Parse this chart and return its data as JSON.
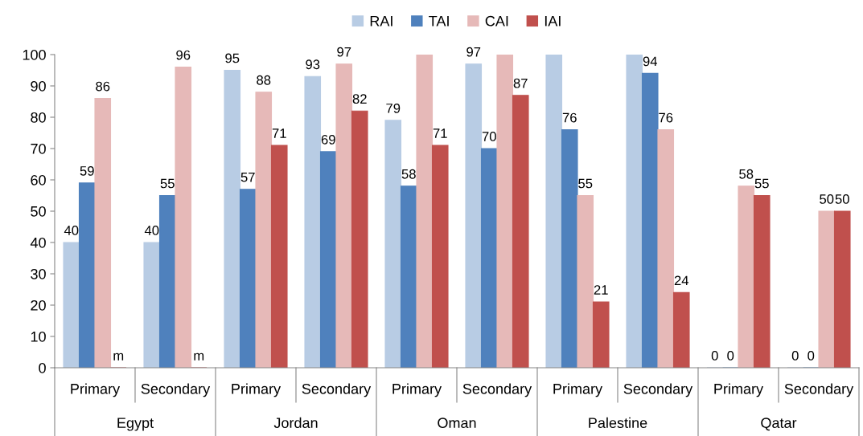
{
  "chart_data": {
    "type": "bar",
    "categories": [
      "Primary",
      "Secondary",
      "Primary",
      "Secondary",
      "Primary",
      "Secondary",
      "Primary",
      "Secondary",
      "Primary",
      "Secondary"
    ],
    "annotations": [
      "Egypt",
      "Jordan",
      "Oman",
      "Palestine",
      "Qatar"
    ],
    "series": [
      {
        "name": "RAI",
        "color": "#b8cce4",
        "values": [
          40,
          40,
          95,
          93,
          79,
          97,
          100,
          100,
          0,
          0
        ],
        "value_labels": [
          "40",
          "40",
          "95",
          "93",
          "79",
          "97",
          null,
          null,
          "0",
          "0"
        ]
      },
      {
        "name": "TAI",
        "color": "#4f81bd",
        "values": [
          59,
          55,
          57,
          69,
          58,
          70,
          76,
          94,
          0,
          0
        ],
        "value_labels": [
          "59",
          "55",
          "57",
          "69",
          "58",
          "70",
          "76",
          "94",
          "0",
          "0"
        ]
      },
      {
        "name": "CAI",
        "color": "#e6b9b8",
        "values": [
          86,
          96,
          88,
          97,
          100,
          100,
          55,
          76,
          58,
          50
        ],
        "value_labels": [
          "86",
          "96",
          "88",
          "97",
          null,
          null,
          "55",
          "76",
          "58",
          "50"
        ]
      },
      {
        "name": "IAI",
        "color": "#c0504d",
        "values": [
          null,
          null,
          71,
          82,
          71,
          87,
          21,
          24,
          55,
          50
        ],
        "value_labels": [
          "m",
          "m",
          "71",
          "82",
          "71",
          "87",
          "21",
          "24",
          "55",
          "50"
        ]
      }
    ],
    "ylim": [
      0,
      100
    ],
    "yticks": [
      0,
      10,
      20,
      30,
      40,
      50,
      60,
      70,
      80,
      90,
      100
    ],
    "grid": false,
    "legend": "top"
  }
}
